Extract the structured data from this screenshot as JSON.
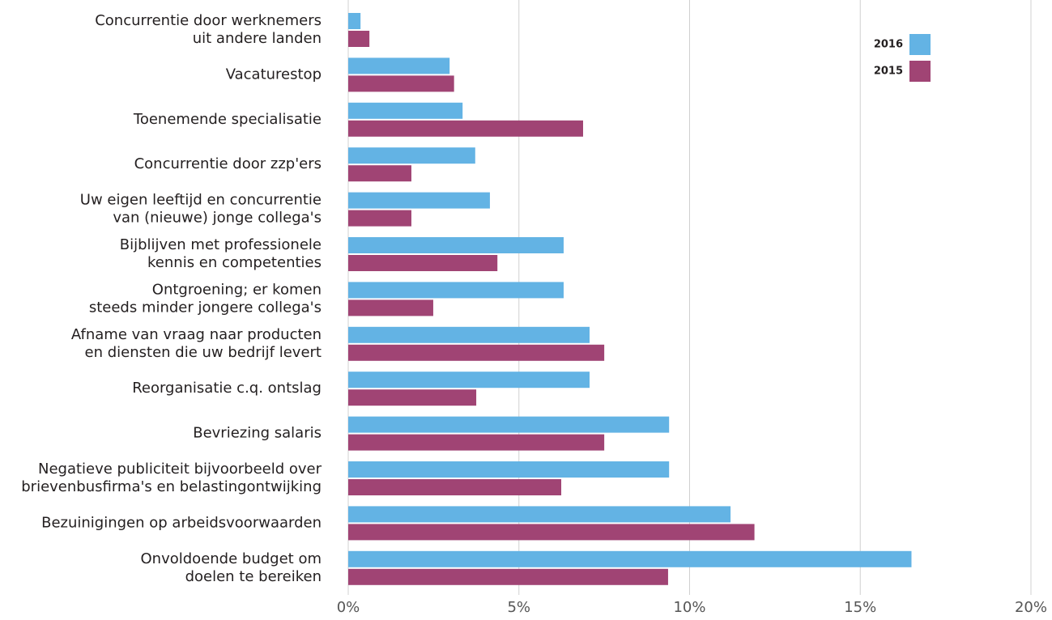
{
  "chart_data": {
    "type": "bar",
    "orientation": "horizontal",
    "categories": [
      "Concurrentie door werknemers\nuit andere landen",
      "Vacaturestop",
      "Toenemende specialisatie",
      "Concurrentie door zzp'ers",
      "Uw eigen leeftijd en concurrentie\nvan (nieuwe) jonge collega's",
      "Bijblijven met professionele\nkennis en competenties",
      "Ontgroening; er komen\nsteeds minder jongere collega's",
      "Afname van vraag naar producten\nen diensten die uw bedrijf levert",
      "Reorganisatie c.q. ontslag",
      "Bevriezing salaris",
      "Negatieve publiciteit bijvoorbeeld over\nbrievenbusfirma's en belastingontwijking",
      "Bezuinigingen op arbeidsvoorwaarden",
      "Onvoldoende budget om\ndoelen te bereiken"
    ],
    "series": [
      {
        "name": "2016",
        "color": "#63b3e4",
        "values": [
          0.36,
          2.97,
          3.35,
          3.72,
          4.15,
          6.31,
          6.31,
          7.07,
          7.07,
          9.4,
          9.4,
          11.2,
          16.5
        ]
      },
      {
        "name": "2015",
        "color": "#a04474",
        "values": [
          0.62,
          3.1,
          6.88,
          1.85,
          1.85,
          4.37,
          2.49,
          7.5,
          3.75,
          7.5,
          6.24,
          11.9,
          9.37
        ]
      }
    ],
    "xlim": [
      0,
      20
    ],
    "xticks": [
      {
        "value": 0,
        "label": "0%"
      },
      {
        "value": 5,
        "label": "5%"
      },
      {
        "value": 10,
        "label": "10%"
      },
      {
        "value": 15,
        "label": "15%"
      },
      {
        "value": 20,
        "label": "20%"
      }
    ],
    "grid": true,
    "legend": "top-right"
  }
}
